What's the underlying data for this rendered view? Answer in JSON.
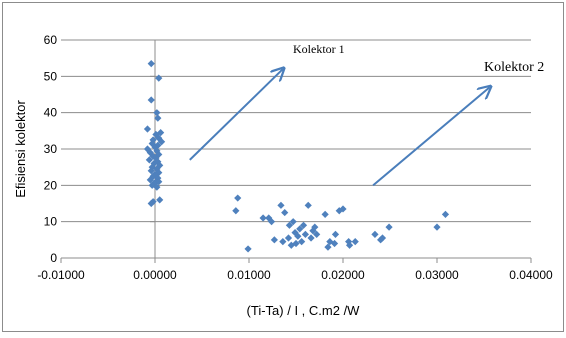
{
  "chart_data": {
    "type": "scatter",
    "title": "",
    "xlabel": "(Ti-Ta) / I , C.m2 /W",
    "ylabel": "Efisiensi kolektor",
    "xlim": [
      -0.01,
      0.04
    ],
    "ylim": [
      0,
      60
    ],
    "x_ticks": [
      -0.01,
      0.0,
      0.01,
      0.02,
      0.03,
      0.04
    ],
    "x_tick_labels": [
      "-0.01000",
      "0.00000",
      "0.01000",
      "0.02000",
      "0.03000",
      "0.04000"
    ],
    "y_ticks": [
      0,
      10,
      20,
      30,
      40,
      50,
      60
    ],
    "y_tick_labels": [
      "0",
      "10",
      "20",
      "30",
      "40",
      "50",
      "60"
    ],
    "grid": "horizontal",
    "legend": "none",
    "marker_color": "#4f81bd",
    "arrow_color": "#4a7ebb",
    "series": [
      {
        "values_xy": [
          [
            -0.0004,
            53.5
          ],
          [
            0.0004,
            49.5
          ],
          [
            -0.0004,
            43.5
          ],
          [
            0.0002,
            40
          ],
          [
            0.0003,
            38.5
          ],
          [
            -0.0008,
            35.5
          ],
          [
            0.0006,
            34.5
          ],
          [
            0.0001,
            34
          ],
          [
            0.0004,
            33
          ],
          [
            -0.0002,
            32.5
          ],
          [
            0.0007,
            32
          ],
          [
            -0.0003,
            31.5
          ],
          [
            0.0003,
            31
          ],
          [
            0.0,
            30.5
          ],
          [
            -0.0008,
            30
          ],
          [
            0.0002,
            29.5
          ],
          [
            -0.0005,
            29
          ],
          [
            0.0004,
            28.5
          ],
          [
            -0.0002,
            28
          ],
          [
            0.0001,
            27.5
          ],
          [
            -0.0006,
            27
          ],
          [
            0.0003,
            26.5
          ],
          [
            -0.0001,
            26
          ],
          [
            0.0005,
            25.5
          ],
          [
            -0.0003,
            25
          ],
          [
            0.0002,
            24.5
          ],
          [
            -0.0004,
            24
          ],
          [
            0.0004,
            23.5
          ],
          [
            0.0,
            23
          ],
          [
            -0.0002,
            22.5
          ],
          [
            0.0003,
            22
          ],
          [
            -0.0005,
            21.5
          ],
          [
            0.0001,
            21
          ],
          [
            0.0004,
            21
          ],
          [
            -0.0001,
            20.5
          ],
          [
            -0.0003,
            20
          ],
          [
            0.0002,
            19.5
          ],
          [
            0.0005,
            16
          ],
          [
            -0.0002,
            15.5
          ],
          [
            -0.0004,
            15
          ],
          [
            0.0088,
            16.5
          ],
          [
            0.0086,
            13
          ],
          [
            0.0099,
            2.5
          ],
          [
            0.0115,
            11
          ],
          [
            0.0121,
            11
          ],
          [
            0.0124,
            10
          ],
          [
            0.0127,
            5
          ],
          [
            0.0134,
            14.5
          ],
          [
            0.0136,
            4.5
          ],
          [
            0.0138,
            12.5
          ],
          [
            0.0142,
            5.5
          ],
          [
            0.0143,
            9
          ],
          [
            0.0145,
            3.5
          ],
          [
            0.0147,
            10
          ],
          [
            0.0149,
            7
          ],
          [
            0.015,
            4
          ],
          [
            0.0152,
            6
          ],
          [
            0.0154,
            8
          ],
          [
            0.0156,
            4.5
          ],
          [
            0.0158,
            9
          ],
          [
            0.016,
            6.5
          ],
          [
            0.0163,
            14.5
          ],
          [
            0.0166,
            5.5
          ],
          [
            0.0168,
            7.5
          ],
          [
            0.017,
            8.5
          ],
          [
            0.0172,
            6.5
          ],
          [
            0.0181,
            12
          ],
          [
            0.0184,
            3
          ],
          [
            0.0186,
            4.5
          ],
          [
            0.0191,
            4
          ],
          [
            0.0192,
            6.5
          ],
          [
            0.0196,
            13
          ],
          [
            0.02,
            13.5
          ],
          [
            0.0206,
            4.5
          ],
          [
            0.0207,
            3.5
          ],
          [
            0.0213,
            4.5
          ],
          [
            0.0234,
            6.5
          ],
          [
            0.024,
            5
          ],
          [
            0.0242,
            5.5
          ],
          [
            0.0249,
            8.5
          ],
          [
            0.03,
            8.5
          ],
          [
            0.0309,
            12
          ]
        ]
      }
    ],
    "annotations": [
      {
        "label": "Kolektor 1",
        "arrow_from": [
          0.0037,
          27
        ],
        "arrow_to": [
          0.0136,
          52
        ]
      },
      {
        "label": "Kolektor 2",
        "arrow_from": [
          0.0232,
          20
        ],
        "arrow_to": [
          0.0356,
          47
        ]
      }
    ]
  }
}
